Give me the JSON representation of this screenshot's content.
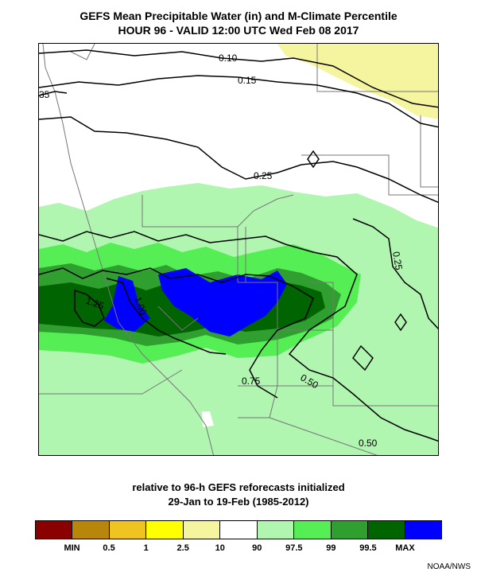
{
  "header": {
    "title_line1": "GEFS Mean Precipitable Water (in) and M-Climate Percentile",
    "title_line2": "HOUR 96 - VALID 12:00 UTC Wed Feb 08 2017"
  },
  "footer": {
    "line1": "relative to 96-h GEFS reforecasts initialized",
    "line2": "29-Jan to 19-Feb (1985-2012)",
    "credit": "NOAA/NWS"
  },
  "contour_labels": {
    "c010": "0.10",
    "c015": "0.15",
    "c035": "35",
    "c025a": "0.25",
    "c025b": "0.25",
    "c050a": "0.50",
    "c050b": "0.50",
    "c075": "0.75",
    "c100": "1.00",
    "c125": "1.25"
  },
  "legend": {
    "colors": [
      "#8b0000",
      "#b8860b",
      "#f0c420",
      "#ffff00",
      "#f5f5a0",
      "#ffffff",
      "#b0f5b0",
      "#55ee55",
      "#2fa02f",
      "#006400",
      "#0000ff"
    ],
    "labels": [
      {
        "text": "MIN",
        "boundary": 1
      },
      {
        "text": "0.5",
        "boundary": 2
      },
      {
        "text": "1",
        "boundary": 3
      },
      {
        "text": "2.5",
        "boundary": 4
      },
      {
        "text": "10",
        "boundary": 5
      },
      {
        "text": "90",
        "boundary": 6
      },
      {
        "text": "97.5",
        "boundary": 7
      },
      {
        "text": "99",
        "boundary": 8
      },
      {
        "text": "99.5",
        "boundary": 9
      },
      {
        "text": "MAX",
        "boundary": 10
      }
    ]
  }
}
